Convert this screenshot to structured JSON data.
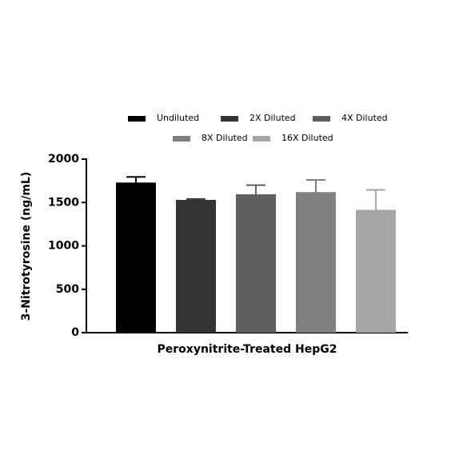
{
  "chart_data": {
    "type": "bar",
    "x_label": "Peroxynitrite-Treated HepG2",
    "y_label": "3-Nitrotyrosine (ng/mL)",
    "ylim": [
      0,
      2000
    ],
    "yticks": [
      0,
      500,
      1000,
      1500,
      2000
    ],
    "series": [
      {
        "name": "Undiluted",
        "color": "#000000",
        "values": [
          1730
        ],
        "errors": [
          65
        ]
      },
      {
        "name": "2X Diluted",
        "color": "#333333",
        "values": [
          1530
        ],
        "errors": [
          10
        ]
      },
      {
        "name": "4X Diluted",
        "color": "#5e5e5e",
        "values": [
          1595
        ],
        "errors": [
          105
        ]
      },
      {
        "name": "8X Diluted",
        "color": "#808080",
        "values": [
          1620
        ],
        "errors": [
          140
        ]
      },
      {
        "name": "16X Diluted",
        "color": "#a6a6a9",
        "values": [
          1415
        ],
        "errors": [
          230
        ]
      }
    ]
  }
}
